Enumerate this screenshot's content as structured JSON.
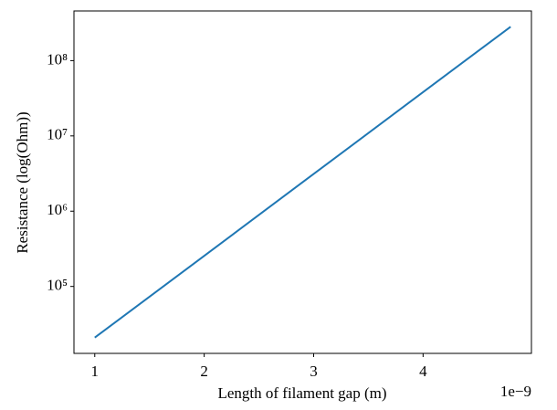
{
  "chart_data": {
    "type": "line",
    "x_label": "Length of filament gap (m)",
    "y_label": "Resistance (log(Ohm))",
    "x_offset_label": "1e−9",
    "x": [
      1,
      1.95,
      2.9,
      3.85,
      4.8
    ],
    "series": [
      {
        "color": "#1f77b4",
        "values": [
          20900,
          225000,
          2430000,
          26200000,
          282000000
        ]
      }
    ],
    "xlim": [
      0.81,
      4.99
    ],
    "xticks": [
      1,
      2,
      3,
      4
    ],
    "ylim": [
      12900,
      457000000
    ],
    "y_log": true,
    "yticks": [
      {
        "value": 100000,
        "label": "10⁵"
      },
      {
        "value": 1000000,
        "label": "10⁶"
      },
      {
        "value": 10000000,
        "label": "10⁷"
      },
      {
        "value": 100000000,
        "label": "10⁸"
      }
    ],
    "grid": false
  }
}
